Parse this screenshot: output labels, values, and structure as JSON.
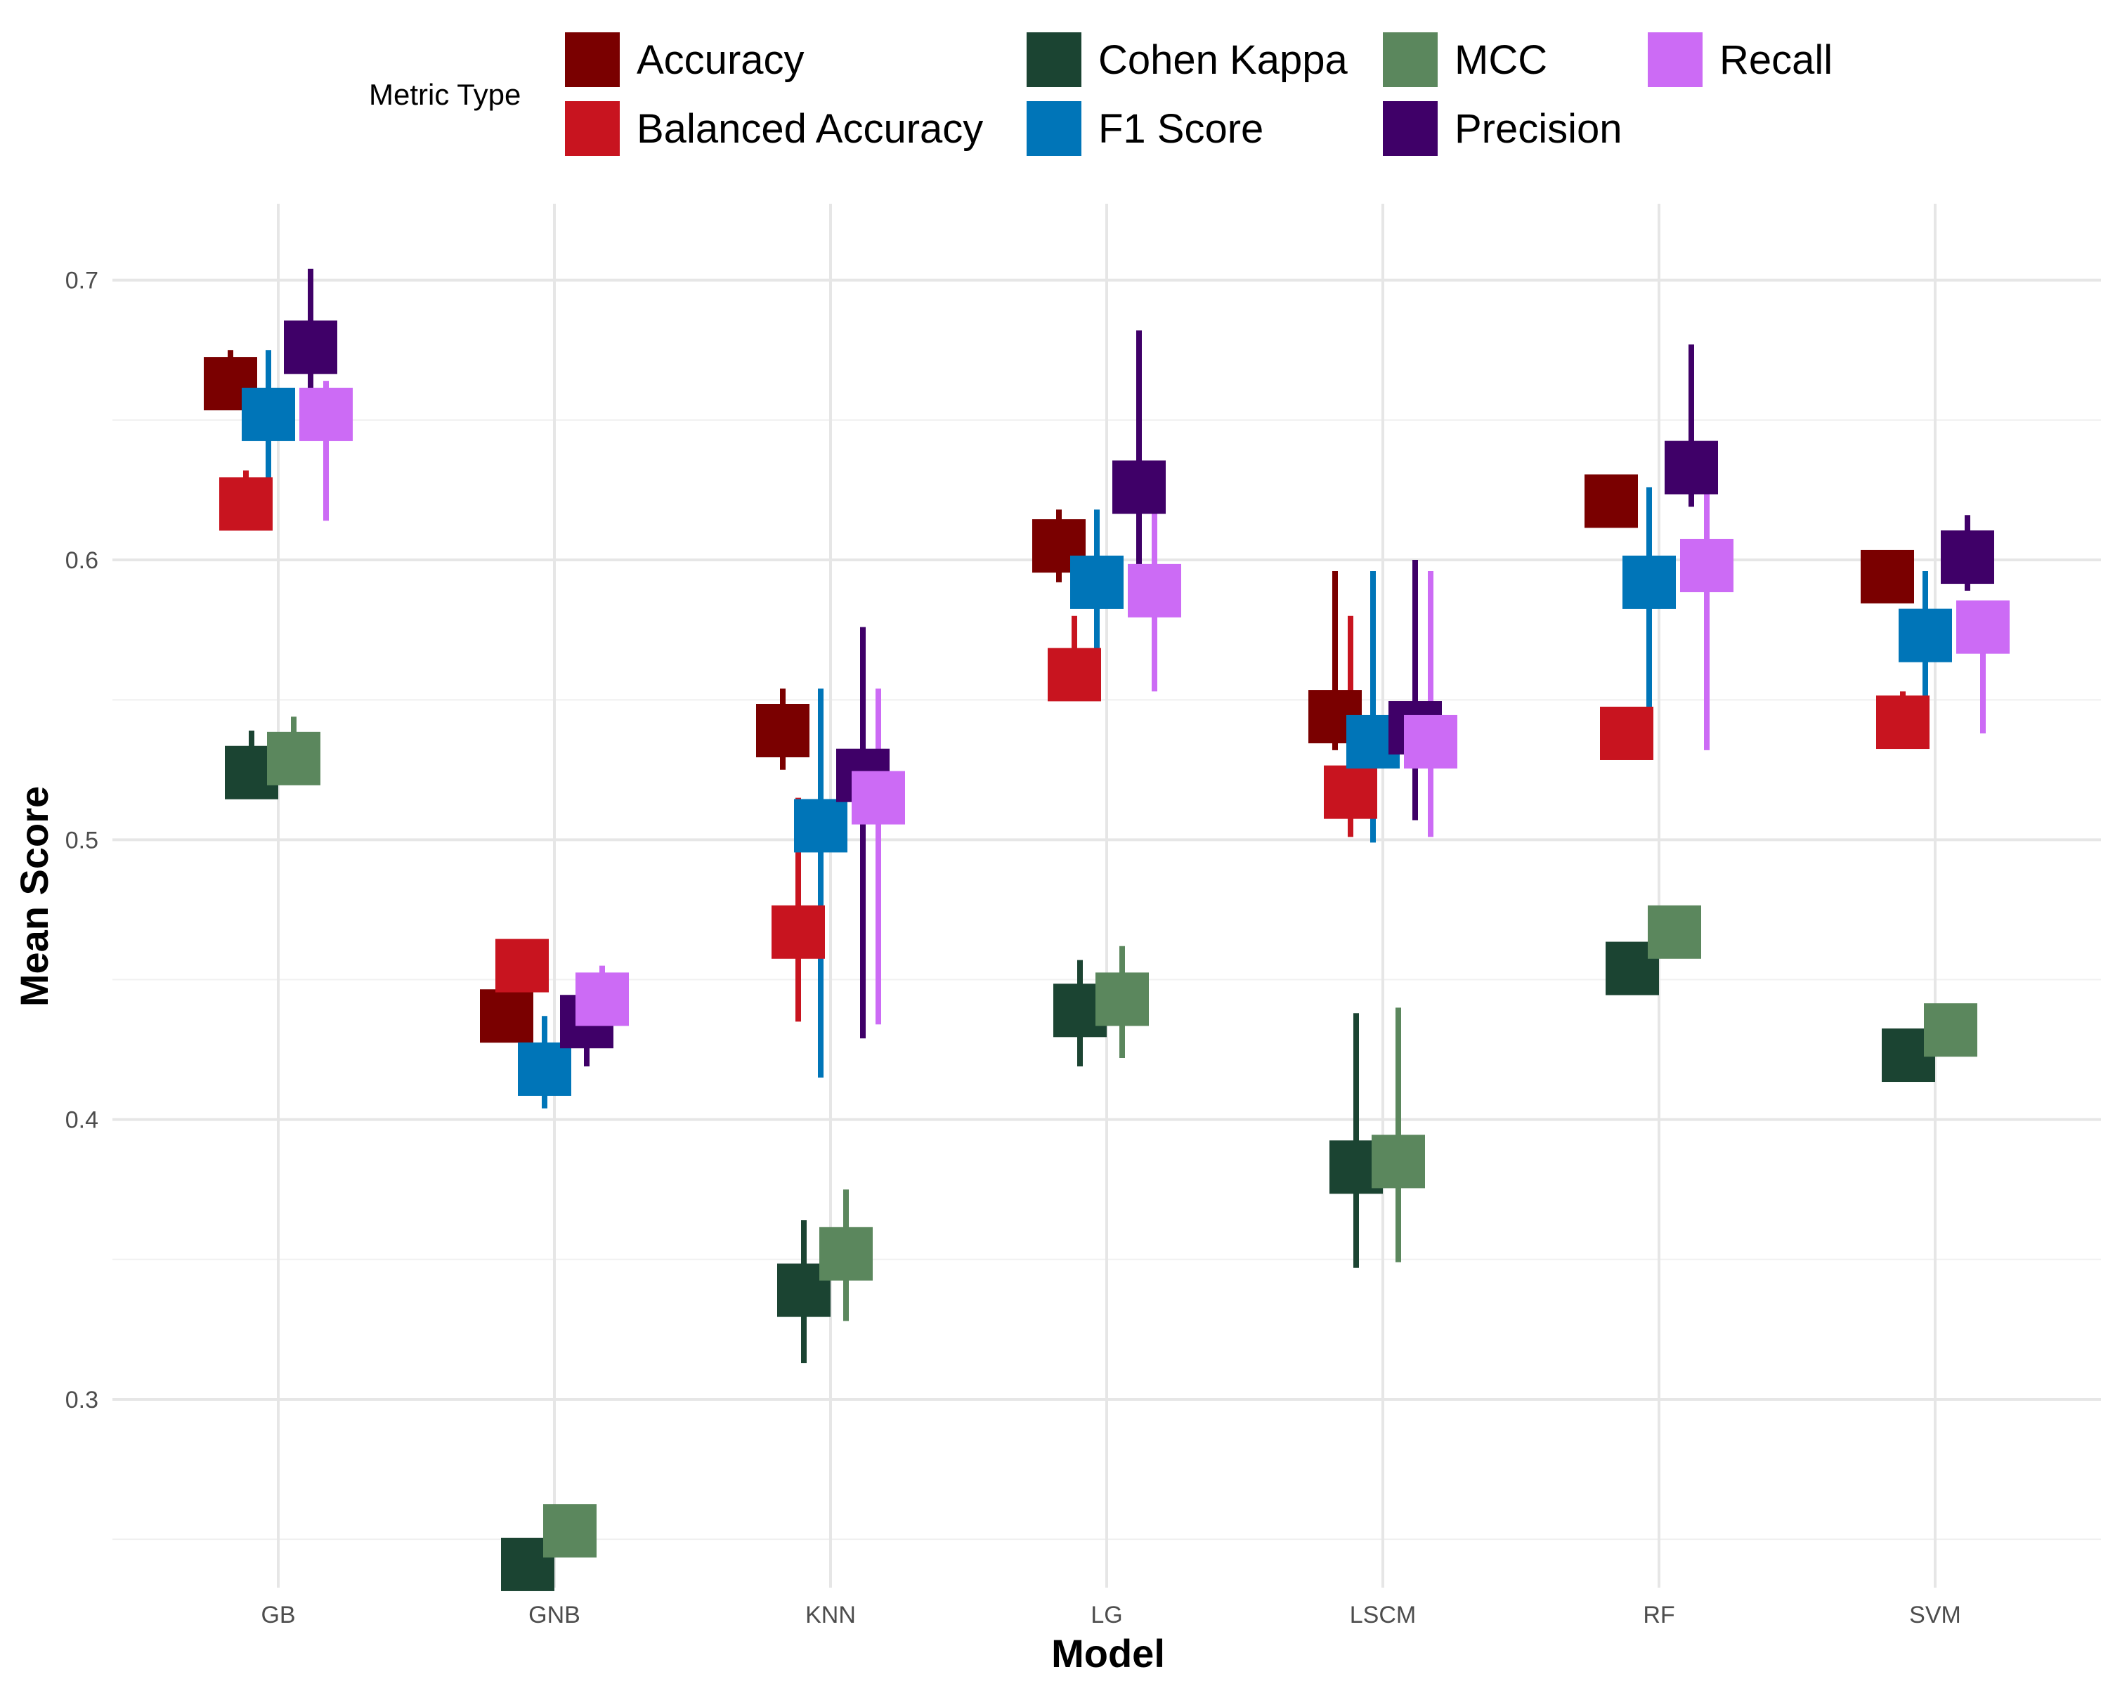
{
  "chart_data": {
    "type": "scatter",
    "title": "",
    "xlabel": "Model",
    "ylabel": "Mean Score",
    "ylim": [
      0.2327,
      0.7273
    ],
    "yticks": [
      0.3,
      0.4,
      0.5,
      0.6,
      0.7
    ],
    "ytick_labels": [
      "0.3",
      "0.4",
      "0.5",
      "0.6",
      "0.7"
    ],
    "grid": true,
    "legend": {
      "title": "Metric Type",
      "placement": "top"
    },
    "categories": [
      "GB",
      "GNB",
      "KNN",
      "LG",
      "LSCM",
      "RF",
      "SVM"
    ],
    "series": [
      {
        "name": "Accuracy",
        "color": "#7a0000",
        "values": [
          0.663,
          0.437,
          0.539,
          0.605,
          0.544,
          0.621,
          0.594
        ],
        "error_low": [
          0.66,
          0.43,
          0.525,
          0.592,
          0.532,
          0.62,
          0.59
        ],
        "error_high": [
          0.675,
          0.44,
          0.554,
          0.618,
          0.596,
          0.622,
          0.598
        ]
      },
      {
        "name": "Balanced Accuracy",
        "color": "#c8141f",
        "values": [
          0.62,
          0.455,
          0.467,
          0.559,
          0.517,
          0.538,
          0.542
        ],
        "error_low": [
          0.615,
          0.45,
          0.435,
          0.55,
          0.501,
          0.535,
          0.54
        ],
        "error_high": [
          0.632,
          0.46,
          0.515,
          0.58,
          0.58,
          0.54,
          0.553
        ]
      },
      {
        "name": "Cohen Kappa",
        "color": "#1b4432",
        "values": [
          0.524,
          0.241,
          0.339,
          0.439,
          0.383,
          0.454,
          0.423
        ],
        "error_low": [
          0.515,
          0.235,
          0.313,
          0.419,
          0.347,
          0.45,
          0.42
        ],
        "error_high": [
          0.539,
          0.245,
          0.364,
          0.457,
          0.438,
          0.458,
          0.426
        ]
      },
      {
        "name": "F1 Score",
        "color": "#0075b8",
        "values": [
          0.652,
          0.418,
          0.505,
          0.592,
          0.535,
          0.592,
          0.573
        ],
        "error_low": [
          0.625,
          0.404,
          0.415,
          0.559,
          0.499,
          0.535,
          0.536
        ],
        "error_high": [
          0.675,
          0.437,
          0.554,
          0.618,
          0.596,
          0.626,
          0.596
        ]
      },
      {
        "name": "MCC",
        "color": "#5b875d",
        "values": [
          0.529,
          0.253,
          0.352,
          0.443,
          0.385,
          0.467,
          0.432
        ],
        "error_low": [
          0.52,
          0.248,
          0.328,
          0.422,
          0.349,
          0.462,
          0.428
        ],
        "error_high": [
          0.544,
          0.258,
          0.375,
          0.462,
          0.44,
          0.472,
          0.436
        ]
      },
      {
        "name": "Precision",
        "color": "#3f0068",
        "values": [
          0.676,
          0.435,
          0.523,
          0.626,
          0.54,
          0.633,
          0.601
        ],
        "error_low": [
          0.645,
          0.419,
          0.429,
          0.593,
          0.507,
          0.619,
          0.589
        ],
        "error_high": [
          0.704,
          0.446,
          0.576,
          0.682,
          0.6,
          0.677,
          0.616
        ]
      },
      {
        "name": "Recall",
        "color": "#cc6bf5",
        "values": [
          0.652,
          0.443,
          0.515,
          0.589,
          0.535,
          0.598,
          0.576
        ],
        "error_low": [
          0.614,
          0.44,
          0.434,
          0.553,
          0.501,
          0.532,
          0.538
        ],
        "error_high": [
          0.664,
          0.455,
          0.554,
          0.618,
          0.596,
          0.625,
          0.583
        ]
      }
    ]
  }
}
